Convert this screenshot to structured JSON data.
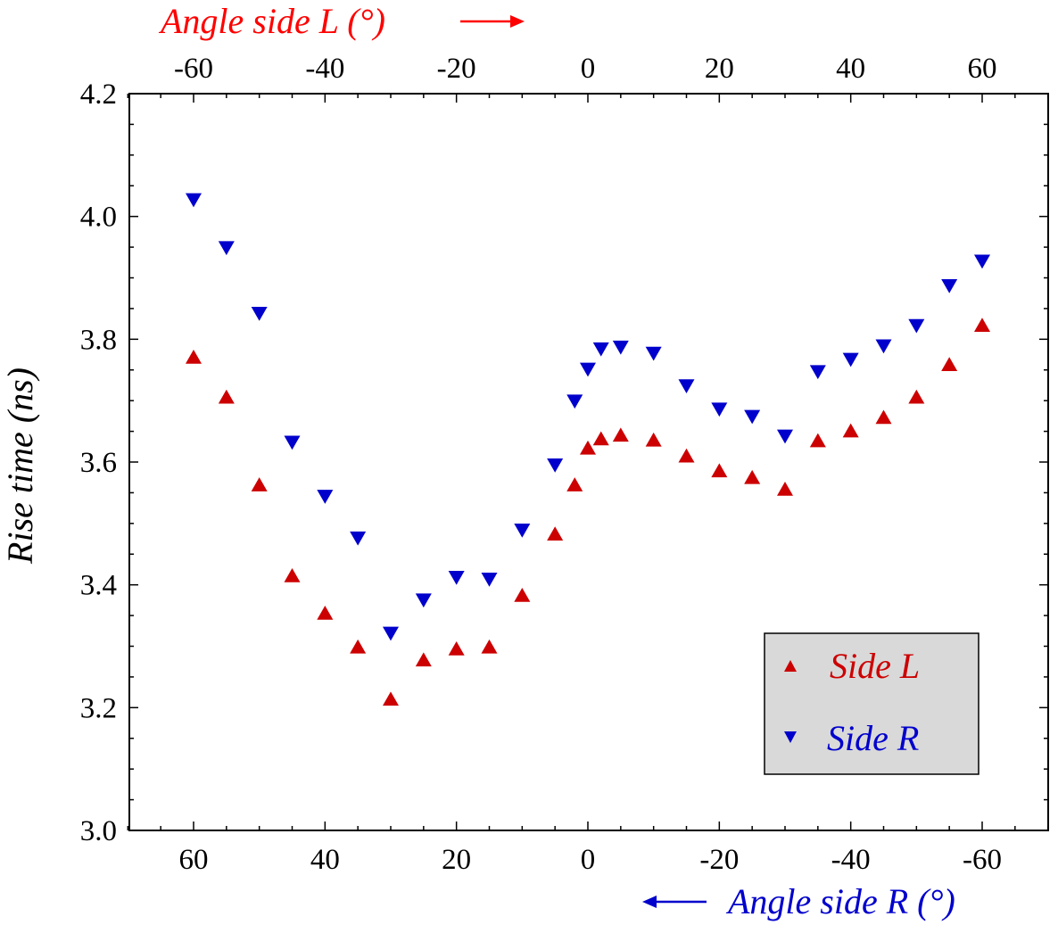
{
  "chart_data": {
    "type": "scatter",
    "ylabel": "Rise time (ns)",
    "xlabel_top": "Angle side L (°)",
    "xlabel_bottom": "Angle side R (°)",
    "top_axis_ticks": [
      -60,
      -40,
      -20,
      0,
      20,
      40,
      60
    ],
    "bottom_axis_ticks": [
      60,
      40,
      20,
      0,
      -20,
      -40,
      -60
    ],
    "y_ticks": [
      "3.0",
      "3.2",
      "3.4",
      "3.6",
      "3.8",
      "4.0",
      "4.2"
    ],
    "ylim": [
      3.0,
      4.2
    ],
    "xlim_top": [
      -70,
      70
    ],
    "xlim_bottom": [
      70,
      -70
    ],
    "grid": false,
    "legend_position": "bottom-right",
    "series": [
      {
        "name": "Side L",
        "color": "#cc0000",
        "marker": "triangle-up",
        "axis": "top",
        "points": [
          [
            -60,
            3.77
          ],
          [
            -55,
            3.705
          ],
          [
            -50,
            3.562
          ],
          [
            -45,
            3.414
          ],
          [
            -40,
            3.353
          ],
          [
            -35,
            3.298
          ],
          [
            -30,
            3.213
          ],
          [
            -25,
            3.277
          ],
          [
            -20,
            3.295
          ],
          [
            -15,
            3.298
          ],
          [
            -10,
            3.382
          ],
          [
            -5,
            3.482
          ],
          [
            -2,
            3.562
          ],
          [
            0,
            3.622
          ],
          [
            2,
            3.637
          ],
          [
            5,
            3.643
          ],
          [
            10,
            3.635
          ],
          [
            15,
            3.609
          ],
          [
            20,
            3.585
          ],
          [
            25,
            3.574
          ],
          [
            30,
            3.555
          ],
          [
            35,
            3.634
          ],
          [
            40,
            3.65
          ],
          [
            45,
            3.672
          ],
          [
            50,
            3.705
          ],
          [
            55,
            3.758
          ],
          [
            60,
            3.822
          ]
        ]
      },
      {
        "name": "Side R",
        "color": "#0000cc",
        "marker": "triangle-down",
        "axis": "bottom",
        "points": [
          [
            60,
            4.028
          ],
          [
            55,
            3.95
          ],
          [
            50,
            3.843
          ],
          [
            45,
            3.633
          ],
          [
            40,
            3.545
          ],
          [
            35,
            3.477
          ],
          [
            30,
            3.322
          ],
          [
            25,
            3.376
          ],
          [
            20,
            3.413
          ],
          [
            15,
            3.41
          ],
          [
            10,
            3.49
          ],
          [
            5,
            3.596
          ],
          [
            2,
            3.7
          ],
          [
            0,
            3.752
          ],
          [
            -2,
            3.785
          ],
          [
            -5,
            3.788
          ],
          [
            -10,
            3.778
          ],
          [
            -15,
            3.725
          ],
          [
            -20,
            3.687
          ],
          [
            -25,
            3.675
          ],
          [
            -30,
            3.643
          ],
          [
            -35,
            3.748
          ],
          [
            -40,
            3.768
          ],
          [
            -45,
            3.79
          ],
          [
            -50,
            3.823
          ],
          [
            -55,
            3.888
          ],
          [
            -60,
            3.928
          ]
        ]
      }
    ]
  },
  "colors": {
    "side_l": "#cc0000",
    "side_r": "#0000cc",
    "top_axis_label": "#ff0000",
    "bottom_axis_label": "#0000cc",
    "legend_bg": "#d9d9d9"
  }
}
